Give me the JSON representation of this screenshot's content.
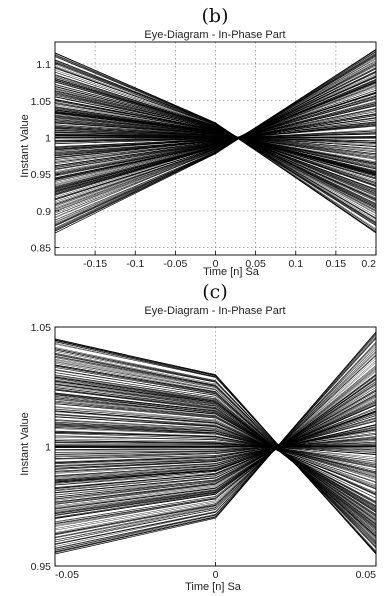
{
  "chart_data": [
    {
      "panel_label": "(b)",
      "type": "line",
      "title": "Eye-Diagram - In-Phase Part",
      "xlabel": "Time [n] Sa",
      "ylabel": "Instant Value",
      "xlim": [
        -0.2,
        0.2
      ],
      "ylim": [
        0.84,
        1.13
      ],
      "x_ticks": [
        -0.15,
        -0.1,
        -0.05,
        0,
        0.05,
        0.1,
        0.15,
        0.2
      ],
      "x_tick_labels": [
        "-0.15",
        "-0.1",
        "-0.05",
        "0",
        "0.05",
        "0.1",
        "0.15",
        "0.2"
      ],
      "y_ticks": [
        0.85,
        0.9,
        0.95,
        1,
        1.05,
        1.1
      ],
      "y_tick_labels": [
        "0.85",
        "0.9",
        "0.95",
        "1",
        "1.05",
        "1.1"
      ],
      "grid": "dotted",
      "line_color": "#000000",
      "x": [
        -0.2,
        0,
        0.2
      ],
      "series": [
        {
          "values": [
            1.115,
            1.02,
            0.87
          ]
        },
        {
          "values": [
            1.08,
            1.015,
            0.905
          ]
        },
        {
          "values": [
            1.05,
            1.01,
            0.935
          ]
        },
        {
          "values": [
            1.02,
            1.005,
            0.965
          ]
        },
        {
          "values": [
            1.0,
            1.0,
            1.0
          ]
        },
        {
          "values": [
            0.975,
            0.995,
            1.03
          ]
        },
        {
          "values": [
            0.945,
            0.99,
            1.06
          ]
        },
        {
          "values": [
            0.915,
            0.985,
            1.09
          ]
        },
        {
          "values": [
            0.87,
            0.978,
            1.12
          ]
        }
      ]
    },
    {
      "panel_label": "(c)",
      "type": "line",
      "title": "Eye-Diagram - In-Phase Part",
      "xlabel": "Time [n] Sa",
      "ylabel": "Instant Value",
      "xlim": [
        -0.05,
        0.05
      ],
      "ylim": [
        0.95,
        1.05
      ],
      "x_ticks": [
        -0.05,
        0,
        0.05
      ],
      "x_tick_labels": [
        "-0.05",
        "0",
        "0.05"
      ],
      "y_ticks": [
        0.95,
        1,
        1.05
      ],
      "y_tick_labels": [
        "0.95",
        "1",
        "1.05"
      ],
      "grid": "dotted",
      "line_color": "#000000",
      "x": [
        -0.05,
        0,
        0.05
      ],
      "series": [
        {
          "values": [
            1.045,
            1.03,
            0.955
          ]
        },
        {
          "values": [
            1.03,
            1.02,
            0.965
          ]
        },
        {
          "values": [
            1.015,
            1.01,
            0.98
          ]
        },
        {
          "values": [
            1.0,
            1.0,
            1.0
          ]
        },
        {
          "values": [
            0.985,
            0.99,
            1.015
          ]
        },
        {
          "values": [
            0.97,
            0.98,
            1.03
          ]
        },
        {
          "values": [
            0.955,
            0.97,
            1.048
          ]
        }
      ]
    }
  ]
}
